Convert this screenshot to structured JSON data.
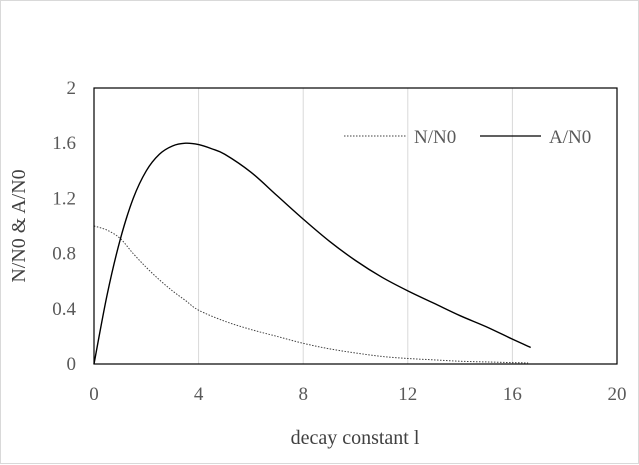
{
  "chart_data": {
    "type": "line",
    "xlabel": "decay constant l",
    "ylabel": "N/N0 & A/N0",
    "xlim": [
      0,
      20
    ],
    "ylim": [
      0,
      2
    ],
    "x_ticks": [
      "0",
      "4",
      "8",
      "12",
      "16",
      "20"
    ],
    "y_ticks": [
      "0",
      "0.4",
      "0.8",
      "1.2",
      "1.6",
      "2"
    ],
    "grid": "vertical",
    "legend": "top-right, inside plot",
    "series": [
      {
        "name": "N/N0",
        "style": "dotted",
        "color": "#404040",
        "x": [
          0,
          0.5,
          1,
          1.5,
          2,
          2.5,
          3,
          3.5,
          4,
          5,
          6,
          7,
          8,
          9,
          10,
          11,
          12,
          13,
          14,
          15,
          16,
          16.6
        ],
        "y": [
          1.0,
          0.97,
          0.91,
          0.8,
          0.7,
          0.61,
          0.53,
          0.46,
          0.39,
          0.31,
          0.25,
          0.2,
          0.15,
          0.11,
          0.08,
          0.055,
          0.04,
          0.03,
          0.02,
          0.015,
          0.01,
          0.008
        ]
      },
      {
        "name": "A/N0",
        "style": "solid",
        "color": "#000000",
        "x": [
          0,
          0.5,
          1,
          1.5,
          2,
          2.5,
          3,
          3.5,
          4,
          4.5,
          5,
          6,
          7,
          8,
          9,
          10,
          11,
          12,
          13,
          14,
          15,
          16,
          16.7
        ],
        "y": [
          0,
          0.5,
          0.9,
          1.2,
          1.4,
          1.52,
          1.58,
          1.6,
          1.59,
          1.56,
          1.52,
          1.39,
          1.22,
          1.05,
          0.89,
          0.75,
          0.63,
          0.53,
          0.44,
          0.35,
          0.27,
          0.18,
          0.12
        ]
      }
    ]
  }
}
